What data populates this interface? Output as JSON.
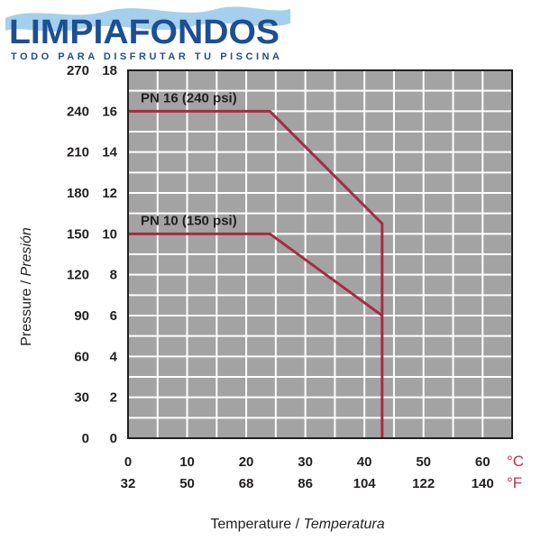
{
  "brand": {
    "name": "LIMPIAFONDOS",
    "tagline": "TODO PARA DISFRUTAR TU PISCINA",
    "name_color": "#1d4f93",
    "tagline_color": "#1d4f93",
    "water_color": "#5aa9de"
  },
  "chart_data": {
    "type": "line",
    "background": "#a3a3a3",
    "grid": true,
    "grid_color": "#ffffff",
    "line_color": "#a62b45",
    "x_range": [
      0,
      65
    ],
    "y_range": [
      0,
      18
    ],
    "x_ticks_c": [
      0,
      10,
      20,
      30,
      40,
      50,
      60
    ],
    "x_ticks_f": [
      32,
      50,
      68,
      86,
      104,
      122,
      140
    ],
    "x_unit_c": "°C",
    "x_unit_f": "°F",
    "y_ticks_bar": [
      0,
      2,
      4,
      6,
      8,
      10,
      12,
      14,
      16,
      18
    ],
    "y_ticks_psi": [
      0,
      30,
      60,
      90,
      120,
      150,
      180,
      210,
      240,
      270
    ],
    "xlabel": "Temperature / ",
    "xlabel_italic": "Temperatura",
    "ylabel": "Pressure / ",
    "ylabel_italic": "Presión",
    "series": [
      {
        "name": "PN 16 (240 psi)",
        "x": [
          0,
          24,
          43,
          43
        ],
        "y": [
          16,
          16,
          10.5,
          0
        ]
      },
      {
        "name": "PN 10 (150 psi)",
        "x": [
          0,
          24,
          43
        ],
        "y": [
          10,
          10,
          6
        ]
      }
    ]
  }
}
